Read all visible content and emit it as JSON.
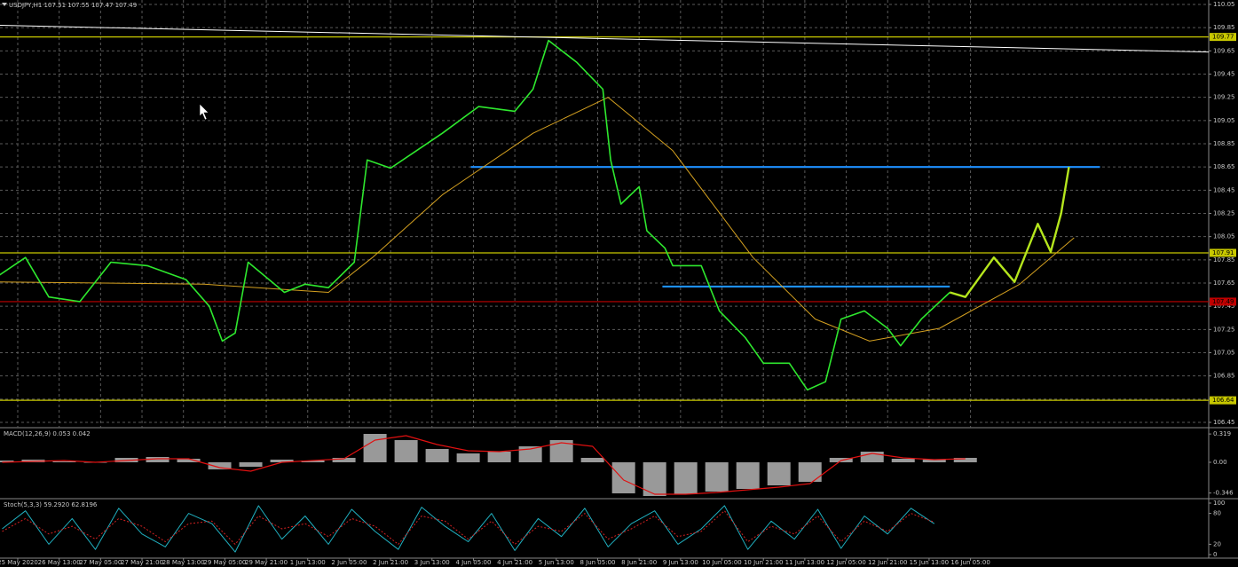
{
  "chart_data": [
    {
      "type": "line",
      "title": "USDJPY,H1 107.51 107.55 107.47 107.49",
      "xlim": [
        -6.85,
        460
      ],
      "xticks": [
        {
          "value": 0,
          "label": "25 May 2020"
        },
        {
          "value": 16,
          "label": "26 May 13:00"
        },
        {
          "value": 32,
          "label": "27 May 05:00"
        },
        {
          "value": 48,
          "label": "27 May 21:00"
        },
        {
          "value": 64,
          "label": "28 May 13:00"
        },
        {
          "value": 80,
          "label": "29 May 05:00"
        },
        {
          "value": 96,
          "label": "29 May 21:00"
        },
        {
          "value": 112,
          "label": "1 Jun 13:00"
        },
        {
          "value": 128,
          "label": "2 Jun 05:00"
        },
        {
          "value": 144,
          "label": "2 Jun 21:00"
        },
        {
          "value": 160,
          "label": "3 Jun 13:00"
        },
        {
          "value": 176,
          "label": "4 Jun 05:00"
        },
        {
          "value": 192,
          "label": "4 Jun 21:00"
        },
        {
          "value": 208,
          "label": "5 Jun 13:00"
        },
        {
          "value": 224,
          "label": "8 Jun 05:00"
        },
        {
          "value": 240,
          "label": "8 Jun 21:00"
        },
        {
          "value": 256,
          "label": "9 Jun 13:00"
        },
        {
          "value": 272,
          "label": "10 Jun 05:00"
        },
        {
          "value": 288,
          "label": "10 Jun 21:00"
        },
        {
          "value": 304,
          "label": "11 Jun 13:00"
        },
        {
          "value": 320,
          "label": "12 Jun 05:00"
        },
        {
          "value": 336,
          "label": "12 Jun 21:00"
        },
        {
          "value": 352,
          "label": "15 Jun 13:00"
        },
        {
          "value": 368,
          "label": "16 Jun 05:00"
        }
      ],
      "ylim": [
        106.45,
        110.05
      ],
      "yticks": [
        110.05,
        109.85,
        109.65,
        109.45,
        109.25,
        109.05,
        108.85,
        108.65,
        108.45,
        108.25,
        108.05,
        107.85,
        107.65,
        107.45,
        107.25,
        107.05,
        106.85,
        106.65,
        106.45
      ],
      "grid": true,
      "series": [
        {
          "color": "#ffffff",
          "width": 1,
          "x": [
            -6.85,
            460
          ],
          "values": [
            109.87,
            109.64
          ]
        },
        {
          "color": "#d4a020",
          "width": 1,
          "x": [
            -7,
            72,
            120,
            137,
            164,
            199,
            228,
            253,
            284,
            308,
            329,
            356,
            387,
            408
          ],
          "values": [
            107.66,
            107.64,
            107.57,
            107.87,
            108.41,
            108.94,
            109.25,
            108.79,
            107.87,
            107.34,
            107.15,
            107.26,
            107.64,
            108.04
          ]
        },
        {
          "color": "#2ee82e",
          "width": 1.6,
          "x": [
            -7,
            3,
            12,
            24,
            36,
            50,
            65,
            74,
            79,
            84,
            89,
            103,
            111,
            120,
            130,
            135,
            144,
            154,
            164,
            178,
            192,
            199,
            205,
            216,
            226,
            229,
            233,
            240,
            243,
            250,
            253,
            264,
            271,
            281,
            288,
            298,
            305,
            312,
            318,
            327,
            336,
            341,
            349,
            360
          ],
          "values": [
            107.72,
            107.87,
            107.53,
            107.49,
            107.83,
            107.8,
            107.68,
            107.45,
            107.15,
            107.22,
            107.83,
            107.57,
            107.64,
            107.61,
            107.83,
            108.71,
            108.64,
            108.79,
            108.94,
            109.17,
            109.13,
            109.32,
            109.74,
            109.55,
            109.32,
            108.71,
            108.33,
            108.48,
            108.1,
            107.95,
            107.8,
            107.8,
            107.41,
            107.18,
            106.96,
            106.96,
            106.73,
            106.8,
            107.34,
            107.41,
            107.26,
            107.11,
            107.34,
            107.57
          ]
        },
        {
          "color": "#b5e61d",
          "width": 2.4,
          "x": [
            360,
            366,
            377,
            385,
            394,
            399,
            403,
            406
          ],
          "values": [
            107.57,
            107.53,
            107.87,
            107.66,
            108.16,
            107.92,
            108.25,
            108.65
          ]
        }
      ],
      "segments": [
        {
          "color": "#1e90ff",
          "x": [
            175,
            418
          ],
          "value": 108.65
        },
        {
          "color": "#1e90ff",
          "x": [
            249,
            360
          ],
          "value": 107.62
        }
      ],
      "levels": [
        {
          "value": 109.77,
          "color": "#c8c800"
        },
        {
          "value": 107.91,
          "color": "#c8c800"
        },
        {
          "value": 107.49,
          "color": "#c00000"
        },
        {
          "value": 106.64,
          "color": "#c8c800"
        }
      ]
    },
    {
      "type": "macd",
      "title": "MACD(12,26,9) 0.053 0.042",
      "xlim": [
        -6.85,
        460
      ],
      "ylim": [
        -0.39,
        0.37
      ],
      "yticks": [
        0.319,
        {
          "value": 0,
          "label": "0.00"
        },
        -0.346
      ],
      "x": [
        -6,
        6,
        18,
        30,
        42,
        54,
        66,
        78,
        90,
        102,
        114,
        126,
        138,
        150,
        162,
        174,
        186,
        198,
        210,
        222,
        234,
        246,
        258,
        270,
        282,
        294,
        306,
        318,
        330,
        342,
        354,
        366
      ],
      "series": [
        {
          "style": "bar",
          "color": "#b4b4b4",
          "values": [
            0.02,
            0.03,
            0.01,
            0,
            0.05,
            0.06,
            0.04,
            -0.08,
            -0.05,
            0.03,
            0.02,
            0.05,
            0.32,
            0.25,
            0.15,
            0.1,
            0.12,
            0.18,
            0.25,
            0.05,
            -0.35,
            -0.38,
            -0.36,
            -0.33,
            -0.3,
            -0.26,
            -0.22,
            0.05,
            0.12,
            0.04,
            0.03,
            0.05
          ]
        },
        {
          "style": "line",
          "color": "#e01010",
          "values": [
            0,
            0.01,
            0.02,
            0,
            0.02,
            0.04,
            0.04,
            -0.06,
            -0.1,
            0,
            0.02,
            0.04,
            0.25,
            0.3,
            0.2,
            0.13,
            0.12,
            0.15,
            0.22,
            0.18,
            -0.2,
            -0.36,
            -0.36,
            -0.34,
            -0.31,
            -0.28,
            -0.24,
            0.02,
            0.1,
            0.05,
            0.03,
            0.04
          ]
        }
      ]
    },
    {
      "type": "line",
      "title": "Stoch(5,3,3) 59.2920 62.8196",
      "xlim": [
        -6.85,
        460
      ],
      "ylim": [
        0,
        100
      ],
      "yticks": [
        100,
        80,
        20,
        0
      ],
      "x": [
        -6,
        3,
        12,
        21,
        30,
        39,
        48,
        57,
        66,
        75,
        84,
        93,
        102,
        111,
        120,
        129,
        138,
        147,
        156,
        165,
        174,
        183,
        192,
        201,
        210,
        219,
        228,
        237,
        246,
        255,
        264,
        273,
        282,
        291,
        300,
        309,
        318,
        327,
        336,
        345,
        354
      ],
      "series": [
        {
          "color": "#20b0c0",
          "width": 1,
          "values": [
            50,
            85,
            20,
            70,
            10,
            90,
            40,
            15,
            80,
            60,
            5,
            95,
            30,
            75,
            20,
            88,
            45,
            10,
            92,
            55,
            25,
            80,
            8,
            70,
            35,
            90,
            15,
            60,
            85,
            20,
            50,
            95,
            10,
            65,
            30,
            88,
            12,
            75,
            40,
            90,
            60
          ]
        },
        {
          "color": "#d02020",
          "width": 1,
          "dash": "2 2",
          "values": [
            45,
            70,
            40,
            55,
            30,
            70,
            55,
            25,
            60,
            65,
            20,
            75,
            50,
            60,
            35,
            70,
            55,
            20,
            75,
            65,
            30,
            65,
            20,
            55,
            45,
            80,
            30,
            50,
            75,
            35,
            45,
            85,
            25,
            55,
            40,
            75,
            25,
            65,
            45,
            80,
            63
          ]
        }
      ]
    }
  ]
}
